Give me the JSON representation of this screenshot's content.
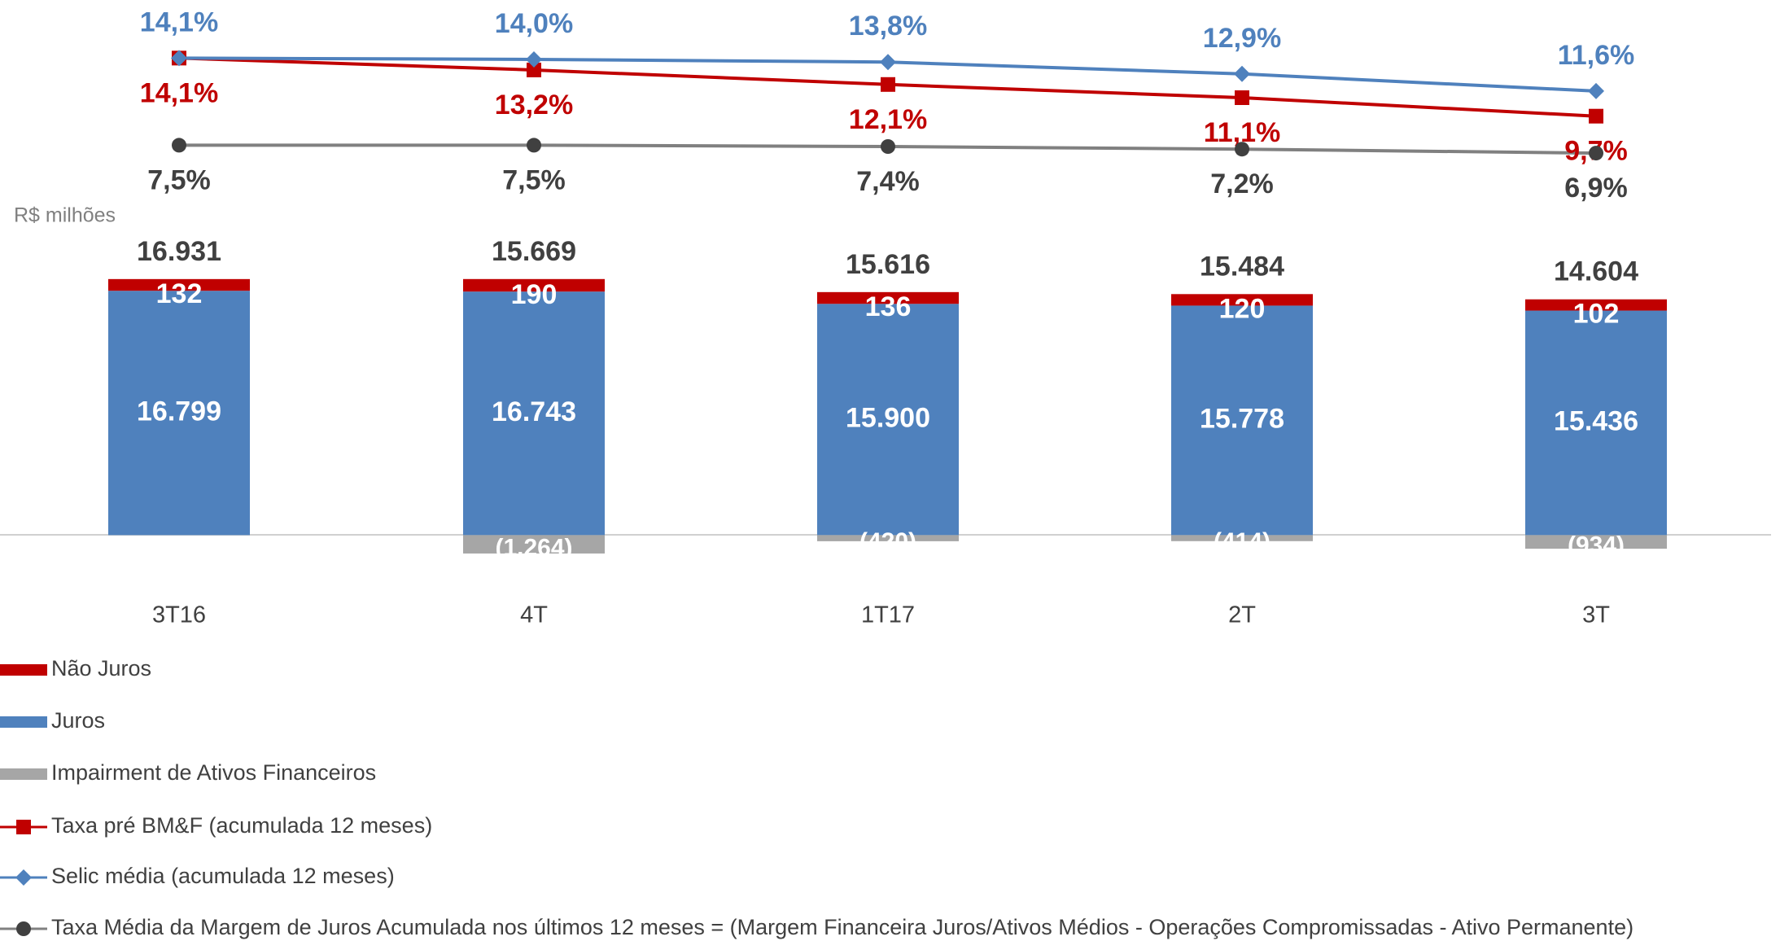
{
  "chart_data": {
    "type": "combo",
    "unit_label": "R$ milhões",
    "categories": [
      "3T16",
      "4T",
      "1T17",
      "2T",
      "3T"
    ],
    "ylim": [
      -3000,
      20000
    ],
    "y2lim": [
      0,
      18.5
    ],
    "series": [
      {
        "name": "Não Juros",
        "type": "bar",
        "color": "#c00000",
        "values": [
          132,
          190,
          136,
          120,
          102
        ],
        "value_labels": [
          "132",
          "190",
          "136",
          "120",
          "102"
        ]
      },
      {
        "name": "Juros",
        "type": "bar",
        "color": "#4f81bd",
        "values": [
          16799,
          16743,
          15900,
          15778,
          15436
        ],
        "value_labels": [
          "16.799",
          "16.743",
          "15.900",
          "15.778",
          "15.436"
        ]
      },
      {
        "name": "Impairment de Ativos Financeiros",
        "type": "bar",
        "color": "#a6a6a6",
        "values": [
          null,
          -1264,
          -420,
          -414,
          -934
        ],
        "value_labels": [
          null,
          "(1.264)",
          "(420)",
          "(414)",
          "(934)"
        ]
      },
      {
        "name": "Taxa pré BM&F (acumulada 12 meses)",
        "type": "line",
        "axis": "y2",
        "marker": "square",
        "color": "#c00000",
        "values": [
          14.1,
          13.2,
          12.1,
          11.1,
          9.7
        ],
        "value_labels": [
          "14,1%",
          "13,2%",
          "12,1%",
          "11,1%",
          "9,7%"
        ]
      },
      {
        "name": "Selic média (acumulada 12 meses)",
        "type": "line",
        "axis": "y2",
        "marker": "diamond",
        "color": "#4f81bd",
        "values": [
          14.1,
          14.0,
          13.8,
          12.9,
          11.6
        ],
        "value_labels": [
          "14,1%",
          "14,0%",
          "13,8%",
          "12,9%",
          "11,6%"
        ]
      },
      {
        "name": "Taxa Média da Margem de Juros Acumulada nos últimos 12 meses = (Margem Financeira Juros/Ativos Médios - Operações Compromissadas - Ativo Permanente)",
        "type": "line",
        "axis": "y2",
        "marker": "circle",
        "color": "#808080",
        "values": [
          7.5,
          7.5,
          7.4,
          7.2,
          6.9
        ],
        "value_labels": [
          "7,5%",
          "7,5%",
          "7,4%",
          "7,2%",
          "6,9%"
        ]
      }
    ],
    "totals": {
      "values": [
        16931,
        15669,
        15616,
        15484,
        14604
      ],
      "value_labels": [
        "16.931",
        "15.669",
        "15.616",
        "15.484",
        "14.604"
      ]
    }
  }
}
